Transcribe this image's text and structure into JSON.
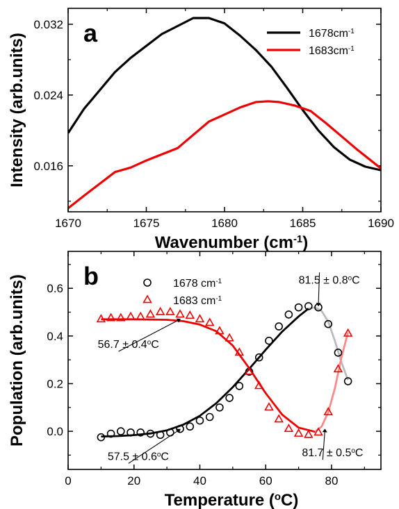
{
  "chart_data": [
    {
      "panel_label": "a",
      "type": "line",
      "xlabel": "Wavenumber (cm",
      "xlabel_sup": "-1",
      "xlabel_end": ")",
      "ylabel": "Intensity (arb.units)",
      "xlim": [
        1670,
        1690
      ],
      "ylim": [
        0.0108,
        0.0338
      ],
      "xticks": [
        1670,
        1675,
        1680,
        1685,
        1690
      ],
      "yticks": [
        0.016,
        0.024,
        0.032
      ],
      "ytick_labels": [
        "0.016",
        "0.024",
        "0.032"
      ],
      "legend_position": "top-right",
      "series": [
        {
          "name": "1678cm",
          "name_sup": "-1",
          "color": "#000000",
          "x": [
            1670,
            1671,
            1673,
            1674,
            1676,
            1677,
            1678,
            1679,
            1680,
            1681,
            1682,
            1683,
            1684,
            1685,
            1686,
            1687,
            1688,
            1689,
            1690
          ],
          "y": [
            0.0197,
            0.0224,
            0.0266,
            0.0282,
            0.0309,
            0.0318,
            0.0327,
            0.0327,
            0.0321,
            0.0307,
            0.0291,
            0.0272,
            0.0248,
            0.0223,
            0.02,
            0.0181,
            0.0167,
            0.0159,
            0.0155
          ]
        },
        {
          "name": "1683cm",
          "name_sup": "-1",
          "color": "#ee0000",
          "x": [
            1670,
            1671,
            1673,
            1674,
            1675,
            1677,
            1678,
            1679,
            1680,
            1681,
            1682,
            1682.8,
            1683.5,
            1684.5,
            1685.5,
            1686.5,
            1687.5,
            1688.5,
            1690
          ],
          "y": [
            0.0112,
            0.0126,
            0.0153,
            0.0158,
            0.0166,
            0.018,
            0.0195,
            0.021,
            0.0218,
            0.0226,
            0.0232,
            0.0233,
            0.0232,
            0.0228,
            0.0222,
            0.0208,
            0.0193,
            0.0178,
            0.0157
          ]
        }
      ]
    },
    {
      "panel_label": "b",
      "type": "scatter",
      "xlabel": "Temperature (",
      "xlabel_sup": "o",
      "xlabel_end": "C)",
      "ylabel": "Population (arb.units)",
      "xlim": [
        0,
        95
      ],
      "ylim": [
        -0.16,
        0.755
      ],
      "xticks": [
        0,
        20,
        40,
        60,
        80
      ],
      "yticks": [
        0.0,
        0.2,
        0.4,
        0.6
      ],
      "ytick_labels": [
        "0.0",
        "0.2",
        "0.4",
        "0.6"
      ],
      "legend_position": "top-left",
      "series": [
        {
          "name": "1678 cm",
          "name_sup": "-1",
          "marker": "circle",
          "color": "#000000",
          "x": [
            10,
            13,
            16,
            19,
            22,
            25,
            28,
            31,
            34,
            37,
            40,
            43,
            46,
            49,
            52,
            55,
            58,
            61,
            64,
            67,
            70,
            73,
            76,
            79,
            82,
            85
          ],
          "y": [
            -0.025,
            -0.01,
            0.0,
            -0.005,
            -0.005,
            -0.01,
            -0.015,
            -0.005,
            0.01,
            0.02,
            0.045,
            0.06,
            0.1,
            0.14,
            0.19,
            0.25,
            0.31,
            0.38,
            0.44,
            0.49,
            0.52,
            0.525,
            0.52,
            0.45,
            0.33,
            0.21
          ]
        },
        {
          "name": "1683 cm",
          "name_sup": "-1",
          "marker": "triangle",
          "color": "#ee0000",
          "x": [
            10,
            13,
            16,
            19,
            22,
            25,
            28,
            31,
            34,
            37,
            40,
            43,
            46,
            49,
            52,
            55,
            58,
            61,
            64,
            67,
            70,
            73,
            76,
            79,
            82,
            85
          ],
          "y": [
            0.47,
            0.475,
            0.475,
            0.48,
            0.48,
            0.49,
            0.5,
            0.5,
            0.49,
            0.485,
            0.47,
            0.455,
            0.42,
            0.39,
            0.33,
            0.25,
            0.19,
            0.1,
            0.05,
            0.01,
            -0.01,
            -0.015,
            -0.005,
            0.08,
            0.26,
            0.41
          ]
        }
      ],
      "fits": [
        {
          "color": "#000000",
          "x": [
            10,
            15,
            20,
            25,
            30,
            35,
            40,
            45,
            50,
            55,
            60,
            65,
            70,
            73
          ],
          "y": [
            -0.022,
            -0.02,
            -0.016,
            -0.009,
            0.004,
            0.028,
            0.065,
            0.118,
            0.185,
            0.262,
            0.342,
            0.418,
            0.482,
            0.515
          ]
        },
        {
          "color": "#bbbbbb",
          "x": [
            73,
            75,
            77,
            79,
            81,
            83,
            85
          ],
          "y": [
            0.515,
            0.52,
            0.505,
            0.46,
            0.38,
            0.29,
            0.215
          ]
        },
        {
          "color": "#ee0000",
          "x": [
            10,
            20,
            30,
            35,
            40,
            45,
            50,
            55,
            60,
            65,
            70,
            75
          ],
          "y": [
            0.47,
            0.47,
            0.468,
            0.462,
            0.448,
            0.42,
            0.36,
            0.265,
            0.16,
            0.07,
            0.015,
            -0.002
          ]
        },
        {
          "color": "#ff8888",
          "x": [
            75,
            77,
            79,
            81,
            83,
            85
          ],
          "y": [
            -0.002,
            0.02,
            0.08,
            0.18,
            0.31,
            0.415
          ]
        }
      ],
      "annotations": [
        {
          "text": "56.7 ± 0.4",
          "sup": "o",
          "end": "C",
          "x": 9,
          "y": 0.35,
          "arrow_to": [
            34,
            0.47
          ]
        },
        {
          "text": "57.5 ± 0.6",
          "sup": "o",
          "end": "C",
          "x": 12,
          "y": -0.12,
          "arrow_to": [
            34,
            0.008
          ]
        },
        {
          "text": "81.5 ± 0.8",
          "sup": "o",
          "end": "C",
          "x": 70,
          "y": 0.62,
          "arrow_to": [
            76,
            0.527
          ]
        },
        {
          "text": "81.7 ± 0.5",
          "sup": "o",
          "end": "C",
          "x": 71,
          "y": -0.105,
          "arrow_to": [
            78,
            0.008
          ]
        }
      ]
    }
  ]
}
